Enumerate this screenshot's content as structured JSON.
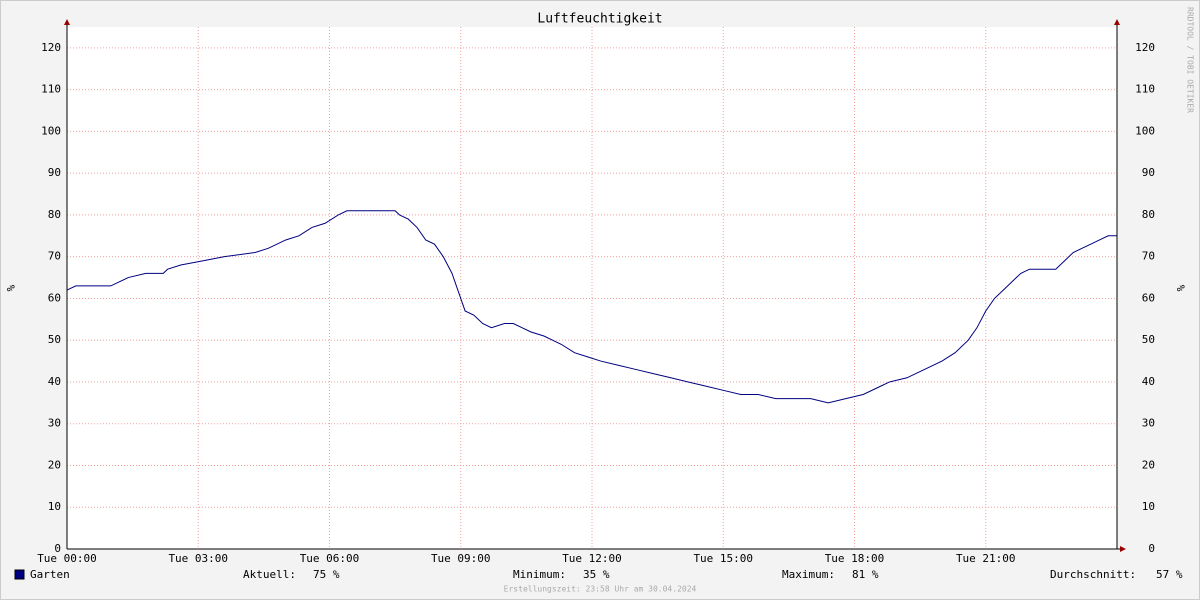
{
  "chart_data": {
    "type": "line",
    "title": "Luftfeuchtigkeit",
    "y_label": "%",
    "watermark": "RRDTOOL / TOBI OETIKER",
    "footer": "Erstellungszeit: 23:58 Uhr am 30.04.2024",
    "xlim": [
      0,
      24
    ],
    "xticks": [
      {
        "value": 0,
        "label": "Tue 00:00"
      },
      {
        "value": 3,
        "label": "Tue 03:00"
      },
      {
        "value": 6,
        "label": "Tue 06:00"
      },
      {
        "value": 9,
        "label": "Tue 09:00"
      },
      {
        "value": 12,
        "label": "Tue 12:00"
      },
      {
        "value": 15,
        "label": "Tue 15:00"
      },
      {
        "value": 18,
        "label": "Tue 18:00"
      },
      {
        "value": 21,
        "label": "Tue 21:00"
      }
    ],
    "ylim": [
      0,
      125
    ],
    "yticks": [
      0,
      10,
      20,
      30,
      40,
      50,
      60,
      70,
      80,
      90,
      100,
      110,
      120
    ],
    "grid": true,
    "x": [
      0,
      0.2,
      1,
      1.4,
      1.8,
      2.2,
      2.3,
      2.6,
      3.1,
      3.6,
      4.3,
      4.6,
      5,
      5.3,
      5.6,
      5.9,
      6.2,
      6.4,
      7.5,
      7.6,
      7.8,
      8,
      8.2,
      8.4,
      8.6,
      8.8,
      8.9,
      9,
      9.1,
      9.3,
      9.5,
      9.7,
      10,
      10.2,
      10.4,
      10.6,
      10.9,
      11.1,
      11.3,
      11.6,
      11.9,
      12.2,
      12.6,
      13,
      13.4,
      13.8,
      14.2,
      14.6,
      15,
      15.4,
      15.8,
      16.2,
      16.6,
      17,
      17.4,
      17.8,
      18.2,
      18.6,
      18.8,
      19.2,
      19.6,
      20,
      20.3,
      20.6,
      20.8,
      21,
      21.2,
      21.4,
      21.6,
      21.8,
      22,
      22.4,
      22.6,
      22.8,
      23,
      23.2,
      23.4,
      23.6,
      23.8,
      24
    ],
    "series": [
      {
        "name": "Garten",
        "color": "#000080",
        "values": [
          62,
          63,
          63,
          65,
          66,
          66,
          67,
          68,
          69,
          70,
          71,
          72,
          74,
          75,
          77,
          78,
          80,
          81,
          81,
          80,
          79,
          77,
          74,
          73,
          70,
          66,
          63,
          60,
          57,
          56,
          54,
          53,
          54,
          54,
          53,
          52,
          51,
          50,
          49,
          47,
          46,
          45,
          44,
          43,
          42,
          41,
          40,
          39,
          38,
          37,
          37,
          36,
          36,
          36,
          35,
          36,
          37,
          39,
          40,
          41,
          43,
          45,
          47,
          50,
          53,
          57,
          60,
          62,
          64,
          66,
          67,
          67,
          67,
          69,
          71,
          72,
          73,
          74,
          75,
          75
        ]
      }
    ],
    "stats": [
      {
        "label": "Aktuell:",
        "value": "75 %"
      },
      {
        "label": "Minimum:",
        "value": "35 %"
      },
      {
        "label": "Maximum:",
        "value": "81 %"
      },
      {
        "label": "Durchschnitt:",
        "value": "57 %"
      }
    ]
  }
}
